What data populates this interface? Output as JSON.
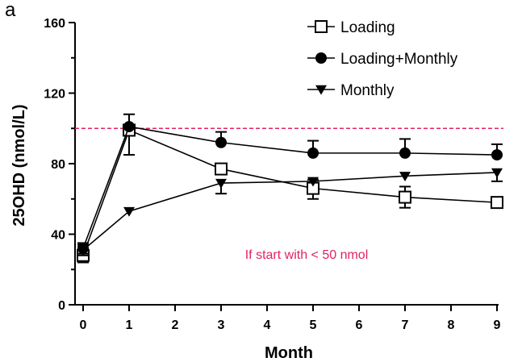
{
  "chart_data": {
    "type": "line",
    "panel_label": "a",
    "xlabel": "Month",
    "ylabel": "25OHD (nmol/L)",
    "xlim": [
      0,
      9
    ],
    "ylim": [
      0,
      160
    ],
    "xticks": [
      0,
      1,
      2,
      3,
      4,
      5,
      6,
      7,
      8,
      9
    ],
    "yticks": [
      0,
      40,
      80,
      120,
      160
    ],
    "grid": false,
    "legend_position": "top-right",
    "series": [
      {
        "name": "Loading",
        "marker": "open-square",
        "x": [
          0,
          1,
          3,
          5,
          7,
          9
        ],
        "y": [
          28,
          99,
          77,
          66,
          61,
          58
        ],
        "err_up": [
          4,
          0,
          0,
          5,
          6,
          0
        ],
        "err_down": [
          4,
          14,
          0,
          6,
          6,
          0
        ]
      },
      {
        "name": "Loading+Monthly",
        "marker": "filled-circle",
        "x": [
          0,
          1,
          3,
          5,
          7,
          9
        ],
        "y": [
          32,
          101,
          92,
          86,
          86,
          85
        ],
        "err_up": [
          3,
          7,
          6,
          7,
          8,
          6
        ],
        "err_down": [
          3,
          0,
          0,
          0,
          0,
          0
        ]
      },
      {
        "name": "Monthly",
        "marker": "filled-triangle-down",
        "x": [
          0,
          1,
          3,
          5,
          7,
          9
        ],
        "y": [
          31,
          53,
          69,
          70,
          73,
          75
        ],
        "err_up": [
          3,
          0,
          0,
          0,
          0,
          0
        ],
        "err_down": [
          3,
          0,
          6,
          0,
          0,
          5
        ]
      }
    ],
    "reference_line": {
      "y": 100,
      "color": "#e0245e",
      "style": "dashed"
    },
    "annotation": {
      "text": "If start with < 50 nmol",
      "x": 5,
      "y": 28,
      "color": "#e0245e"
    }
  }
}
